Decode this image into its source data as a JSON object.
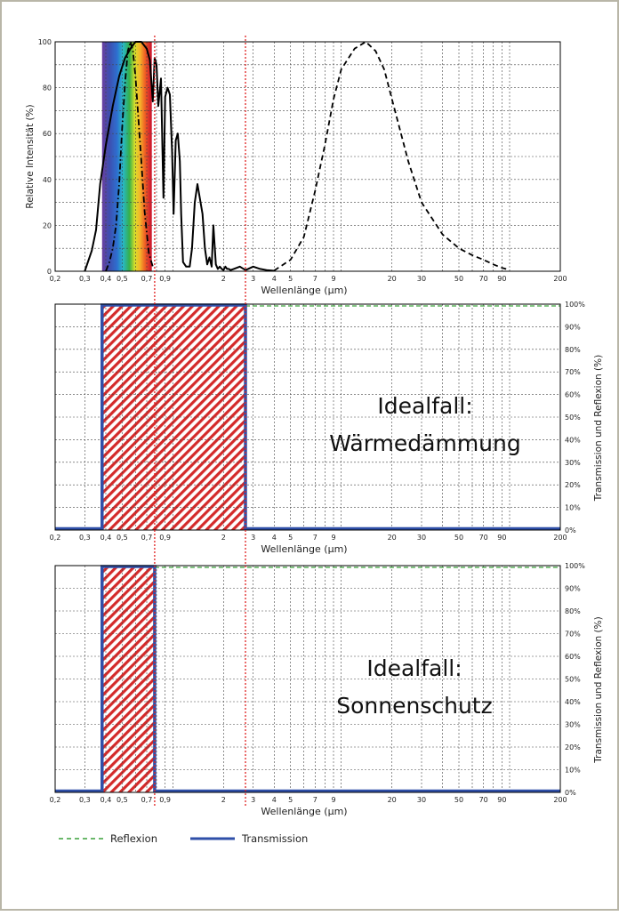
{
  "chart_data": [
    {
      "type": "line",
      "xscale": "log",
      "xlim": [
        0.2,
        200
      ],
      "ylim": [
        0,
        100
      ],
      "xlabel": "Wellenlänge (µm)",
      "ylabel": "Relative Intensität (%)",
      "y_ticks": [
        "0",
        "20",
        "40",
        "60",
        "80",
        "100"
      ],
      "x_tick_labels": [
        "0,2",
        "0,3",
        "0,4",
        "0,5",
        "0,7",
        "0,9",
        "2",
        "3",
        "4",
        "5",
        "7",
        "9",
        "20",
        "30",
        "50",
        "70",
        "90",
        "200"
      ],
      "x_ticks": [
        0.2,
        0.3,
        0.4,
        0.5,
        0.7,
        0.9,
        2,
        3,
        4,
        5,
        7,
        9,
        20,
        30,
        50,
        70,
        90,
        200
      ],
      "visible_spectrum": [
        0.38,
        0.75
      ],
      "grid": true,
      "series": [
        {
          "style": "solid",
          "color": "#000000",
          "x": [
            0.3,
            0.33,
            0.35,
            0.37,
            0.4,
            0.44,
            0.48,
            0.52,
            0.56,
            0.6,
            0.65,
            0.7,
            0.73,
            0.76,
            0.78,
            0.8,
            0.82,
            0.85,
            0.88,
            0.9,
            0.93,
            0.96,
            0.99,
            1.01,
            1.04,
            1.07,
            1.1,
            1.12,
            1.15,
            1.2,
            1.26,
            1.3,
            1.35,
            1.4,
            1.5,
            1.55,
            1.6,
            1.65,
            1.7,
            1.74,
            1.8,
            1.85,
            1.9,
            1.95,
            2.0,
            2.05,
            2.1,
            2.15,
            2.2,
            2.3,
            2.5,
            2.7,
            2.8,
            3.0,
            3.3,
            3.6,
            4.0
          ],
          "y": [
            0,
            9,
            18,
            38,
            55,
            72,
            85,
            93,
            97,
            100,
            100,
            97,
            92,
            74,
            93,
            90,
            72,
            84,
            32,
            76,
            80,
            77,
            52,
            25,
            57,
            60,
            48,
            25,
            4,
            2,
            2,
            10,
            30,
            38,
            25,
            10,
            3,
            6,
            2,
            20,
            3,
            1,
            2,
            1,
            0.5,
            2,
            1,
            1,
            0.5,
            1,
            2,
            0.5,
            1,
            2,
            1,
            0.5,
            0.2
          ]
        },
        {
          "style": "dash-dot",
          "color": "#000000",
          "x": [
            0.4,
            0.42,
            0.44,
            0.46,
            0.48,
            0.5,
            0.52,
            0.54,
            0.56,
            0.58,
            0.6,
            0.62,
            0.65,
            0.68,
            0.72,
            0.76
          ],
          "y": [
            0,
            4,
            10,
            20,
            38,
            62,
            82,
            96,
            100,
            96,
            85,
            70,
            48,
            26,
            8,
            2
          ]
        },
        {
          "style": "dashed",
          "color": "#000000",
          "x": [
            4,
            5,
            6,
            7,
            8,
            9,
            10,
            12,
            14,
            16,
            18,
            20,
            25,
            30,
            40,
            50,
            60,
            70,
            80,
            90,
            100
          ],
          "y": [
            0.3,
            5,
            15,
            35,
            55,
            75,
            88,
            97,
            100,
            96,
            88,
            75,
            48,
            30,
            16,
            10,
            7,
            5,
            3,
            1.5,
            0.5
          ]
        }
      ],
      "markers": [
        0.78,
        2.7
      ]
    },
    {
      "type": "area",
      "xscale": "log",
      "xlim": [
        0.2,
        200
      ],
      "ylim": [
        0,
        100
      ],
      "xlabel": "Wellenlänge (µm)",
      "ylabel": "Transmission und Reflexion (%)",
      "y_ticks": [
        "0%",
        "10%",
        "20%",
        "30%",
        "40%",
        "50%",
        "60%",
        "70%",
        "80%",
        "90%",
        "100%"
      ],
      "x_tick_labels": [
        "0,2",
        "0,3",
        "0,4",
        "0,5",
        "0,7",
        "0,9",
        "2",
        "3",
        "4",
        "5",
        "7",
        "9",
        "20",
        "30",
        "50",
        "70",
        "90",
        "200"
      ],
      "title_lines": [
        "Idealfall:",
        "Wärmedämmung"
      ],
      "transmission_band": [
        0.38,
        2.7
      ],
      "reflexion_from": 2.7,
      "transmission_level": 100,
      "reflexion_level": 100
    },
    {
      "type": "area",
      "xscale": "log",
      "xlim": [
        0.2,
        200
      ],
      "ylim": [
        0,
        100
      ],
      "xlabel": "Wellenlänge (µm)",
      "ylabel": "Transmission und Reflexion (%)",
      "y_ticks": [
        "0%",
        "10%",
        "20%",
        "30%",
        "40%",
        "50%",
        "60%",
        "70%",
        "80%",
        "90%",
        "100%"
      ],
      "x_tick_labels": [
        "0,2",
        "0,3",
        "0,4",
        "0,5",
        "0,7",
        "0,9",
        "2",
        "3",
        "4",
        "5",
        "7",
        "9",
        "20",
        "30",
        "50",
        "70",
        "90",
        "200"
      ],
      "title_lines": [
        "Idealfall:",
        "Sonnenschutz"
      ],
      "transmission_band": [
        0.38,
        0.78
      ],
      "reflexion_from": 0.78,
      "transmission_level": 100,
      "reflexion_level": 100
    }
  ],
  "legend": {
    "reflexion": "Reflexion",
    "transmission": "Transmission",
    "reflexion_color": "#3aa13a",
    "transmission_color": "#2f4fa8"
  },
  "colors": {
    "marker": "#e02020",
    "hatch": "#d42a2a",
    "transmission": "#2f4fa8",
    "reflexion": "#3aa13a"
  }
}
